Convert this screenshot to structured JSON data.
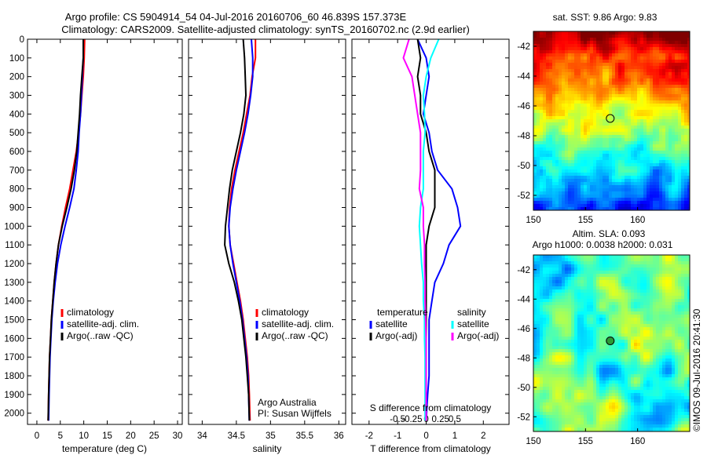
{
  "header": {
    "title_line1": "Argo profile: CS 5904914_54 04-Jul-2016 20160706_60 46.839S 157.373E",
    "title_line2": "Climatology: CARS2009. Satellite-adjusted climatology: synTS_20160702.nc (2.9d earlier)"
  },
  "colors": {
    "climatology": "#ff0000",
    "satellite": "#0000ff",
    "argo": "#000000",
    "satellite_salinity": "#00ffff",
    "argo_salinity_adj": "#ff00ff"
  },
  "chart_data": [
    {
      "type": "line",
      "id": "temperature",
      "xlabel": "temperature (deg C)",
      "ylabel": "",
      "xlim": [
        -2,
        31
      ],
      "ylim": [
        2060,
        0
      ],
      "xticks": [
        0,
        5,
        10,
        15,
        20,
        25,
        30
      ],
      "yticks": [
        0,
        100,
        200,
        300,
        400,
        500,
        600,
        700,
        800,
        900,
        1000,
        1100,
        1200,
        1300,
        1400,
        1500,
        1600,
        1700,
        1800,
        1900,
        2000
      ],
      "legend": [
        "climatology",
        "satellite-adj. clim.",
        "Argo(..raw -QC)"
      ],
      "series": [
        {
          "name": "climatology",
          "color": "#ff0000",
          "x": [
            10.2,
            10.1,
            9.9,
            9.6,
            9.3,
            8.9,
            8.4,
            7.7,
            7.0,
            6.1,
            5.3,
            4.6,
            4.1,
            3.7,
            3.4,
            3.1,
            2.9,
            2.7,
            2.6,
            2.5,
            2.4
          ],
          "y": [
            0,
            100,
            200,
            300,
            400,
            500,
            600,
            700,
            800,
            900,
            1000,
            1100,
            1200,
            1300,
            1400,
            1500,
            1600,
            1700,
            1800,
            1900,
            2040
          ]
        },
        {
          "name": "satellite-adj. clim.",
          "color": "#0000ff",
          "x": [
            9.9,
            9.9,
            9.7,
            9.5,
            9.3,
            9.0,
            8.8,
            8.4,
            7.9,
            7.0,
            6.0,
            5.1,
            4.4,
            3.9,
            3.5,
            3.2,
            3.0,
            2.8,
            2.7,
            2.6,
            2.5
          ],
          "y": [
            0,
            100,
            200,
            300,
            400,
            500,
            600,
            700,
            800,
            900,
            1000,
            1100,
            1200,
            1300,
            1400,
            1500,
            1600,
            1700,
            1800,
            1900,
            2040
          ]
        },
        {
          "name": "Argo(..raw -QC)",
          "color": "#000000",
          "x": [
            9.9,
            9.9,
            9.6,
            9.3,
            9.1,
            8.8,
            8.5,
            8.0,
            7.3,
            6.4,
            5.4,
            4.6,
            4.1,
            3.7,
            3.4,
            3.1,
            2.9,
            2.7,
            2.6,
            2.5,
            2.4
          ],
          "y": [
            0,
            100,
            200,
            300,
            400,
            500,
            600,
            700,
            800,
            900,
            1000,
            1100,
            1200,
            1300,
            1400,
            1500,
            1600,
            1700,
            1800,
            1900,
            2040
          ]
        }
      ]
    },
    {
      "type": "line",
      "id": "salinity",
      "xlabel": "salinity",
      "ylabel": "",
      "xlim": [
        33.8,
        36.1
      ],
      "ylim": [
        2060,
        0
      ],
      "xticks": [
        34,
        34.5,
        35,
        35.5,
        36
      ],
      "legend": [
        "climatology",
        "satellite-adj. clim.",
        "Argo(..raw -QC)"
      ],
      "annotation": [
        "Argo Australia",
        "PI: Susan Wijffels"
      ],
      "series": [
        {
          "name": "climatology",
          "color": "#ff0000",
          "x": [
            34.78,
            34.78,
            34.73,
            34.7,
            34.65,
            34.6,
            34.54,
            34.48,
            34.43,
            34.4,
            34.39,
            34.41,
            34.46,
            34.51,
            34.56,
            34.6,
            34.63,
            34.66,
            34.68,
            34.69,
            34.7
          ],
          "y": [
            0,
            100,
            200,
            300,
            400,
            500,
            600,
            700,
            800,
            900,
            1000,
            1100,
            1200,
            1300,
            1400,
            1500,
            1600,
            1700,
            1800,
            1900,
            2040
          ]
        },
        {
          "name": "satellite-adj. clim.",
          "color": "#0000ff",
          "x": [
            34.72,
            34.74,
            34.74,
            34.71,
            34.67,
            34.62,
            34.56,
            34.5,
            34.45,
            34.41,
            34.39,
            34.41,
            34.45,
            34.5,
            34.55,
            34.59,
            34.62,
            34.65,
            34.67,
            34.68,
            34.69
          ],
          "y": [
            0,
            100,
            200,
            300,
            400,
            500,
            600,
            700,
            800,
            900,
            1000,
            1100,
            1200,
            1300,
            1400,
            1500,
            1600,
            1700,
            1800,
            1900,
            2040
          ]
        },
        {
          "name": "Argo(..raw -QC)",
          "color": "#000000",
          "x": [
            34.6,
            34.62,
            34.63,
            34.64,
            34.61,
            34.56,
            34.5,
            34.44,
            34.4,
            34.37,
            34.34,
            34.33,
            34.39,
            34.47,
            34.53,
            34.58,
            34.61,
            34.64,
            34.66,
            34.68,
            34.69
          ],
          "y": [
            0,
            100,
            200,
            300,
            400,
            500,
            600,
            700,
            800,
            900,
            1000,
            1100,
            1200,
            1300,
            1400,
            1500,
            1600,
            1700,
            1800,
            1900,
            2040
          ]
        }
      ]
    },
    {
      "type": "line",
      "id": "differences",
      "xlabel": "T difference from climatology",
      "top_xlabel": "S difference from climatology",
      "xlim": [
        -2.6,
        2.9
      ],
      "ylim": [
        2060,
        0
      ],
      "xticks": [
        -2,
        -1,
        0,
        1,
        2
      ],
      "top_xticks": [
        -0.5,
        -0.25,
        0,
        0.25,
        0.5
      ],
      "top_xtick_labels": [
        "-0.5",
        "-0.25",
        "0",
        "0.25",
        "0.5"
      ],
      "legend_temperature": [
        "temperature",
        "satellite",
        "Argo(-adj)"
      ],
      "legend_salinity": [
        "salinity",
        "satellite",
        "Argo(-adj)"
      ],
      "series": [
        {
          "name": "satellite",
          "group": "temperature",
          "color": "#0000ff",
          "x": [
            -0.3,
            0.0,
            0.1,
            0.0,
            -0.1,
            0.1,
            0.2,
            0.4,
            0.9,
            1.1,
            1.2,
            0.8,
            0.6,
            0.3,
            0.2,
            0.1,
            0.1,
            0.1,
            0.1,
            0.05,
            0.0
          ],
          "y": [
            0,
            100,
            200,
            300,
            400,
            500,
            600,
            700,
            800,
            900,
            1000,
            1100,
            1200,
            1300,
            1400,
            1500,
            1600,
            1700,
            1800,
            1900,
            2040
          ]
        },
        {
          "name": "Argo(-adj)",
          "group": "temperature",
          "color": "#000000",
          "x": [
            -0.3,
            -0.2,
            -0.3,
            -0.2,
            -0.2,
            0.0,
            0.1,
            0.3,
            0.3,
            0.3,
            0.1,
            0.0,
            0.0,
            0.0,
            0.0,
            0.0,
            0.0,
            0.0,
            0.0,
            0.0,
            0.0
          ],
          "y": [
            0,
            100,
            200,
            300,
            400,
            500,
            600,
            700,
            800,
            900,
            1000,
            1100,
            1200,
            1300,
            1400,
            1500,
            1600,
            1700,
            1800,
            1900,
            2040
          ]
        },
        {
          "name": "satellite",
          "group": "salinity",
          "color": "#00ffff",
          "x": [
            0.22,
            0.08,
            0.0,
            -0.05,
            -0.03,
            -0.02,
            -0.05,
            -0.05,
            -0.05,
            -0.1,
            -0.12,
            -0.1,
            -0.08,
            -0.05,
            -0.05,
            -0.03,
            -0.03,
            -0.02,
            -0.02,
            -0.02,
            -0.02
          ],
          "y": [
            0,
            100,
            200,
            300,
            400,
            500,
            600,
            700,
            800,
            900,
            1000,
            1100,
            1200,
            1300,
            1400,
            1500,
            1600,
            1700,
            1800,
            1900,
            2040
          ]
        },
        {
          "name": "Argo(-adj)",
          "group": "salinity",
          "color": "#ff00ff",
          "x": [
            -0.3,
            -0.4,
            -0.25,
            -0.2,
            -0.15,
            -0.1,
            -0.1,
            -0.1,
            -0.12,
            -0.05,
            -0.05,
            -0.03,
            -0.03,
            -0.02,
            -0.02,
            -0.01,
            0.0,
            0.0,
            0.0,
            0.0,
            0.0
          ],
          "y": [
            0,
            100,
            200,
            300,
            400,
            500,
            600,
            700,
            800,
            900,
            1000,
            1100,
            1200,
            1300,
            1400,
            1500,
            1600,
            1700,
            1800,
            1900,
            2040
          ]
        }
      ]
    },
    {
      "type": "heatmap",
      "id": "sst_map",
      "title": "sat. SST: 9.86  Argo: 9.83",
      "xlim": [
        150,
        165
      ],
      "ylim": [
        -53,
        -41
      ],
      "xticks": [
        150,
        155,
        160
      ],
      "yticks": [
        -42,
        -44,
        -46,
        -48,
        -50,
        -52
      ],
      "marker": {
        "lon": 157.373,
        "lat": -46.839
      }
    },
    {
      "type": "heatmap",
      "id": "sla_map",
      "title_line1": "Altim. SLA: 0.093",
      "title_line2": "Argo h1000: 0.0038 h2000: 0.031",
      "side_label": "©IMOS 09-Jul-2016 20:41:30",
      "xlim": [
        150,
        165
      ],
      "ylim": [
        -53,
        -41
      ],
      "xticks": [
        150,
        155,
        160
      ],
      "yticks": [
        -42,
        -44,
        -46,
        -48,
        -50,
        -52
      ],
      "marker": {
        "lon": 157.373,
        "lat": -46.839
      }
    }
  ]
}
